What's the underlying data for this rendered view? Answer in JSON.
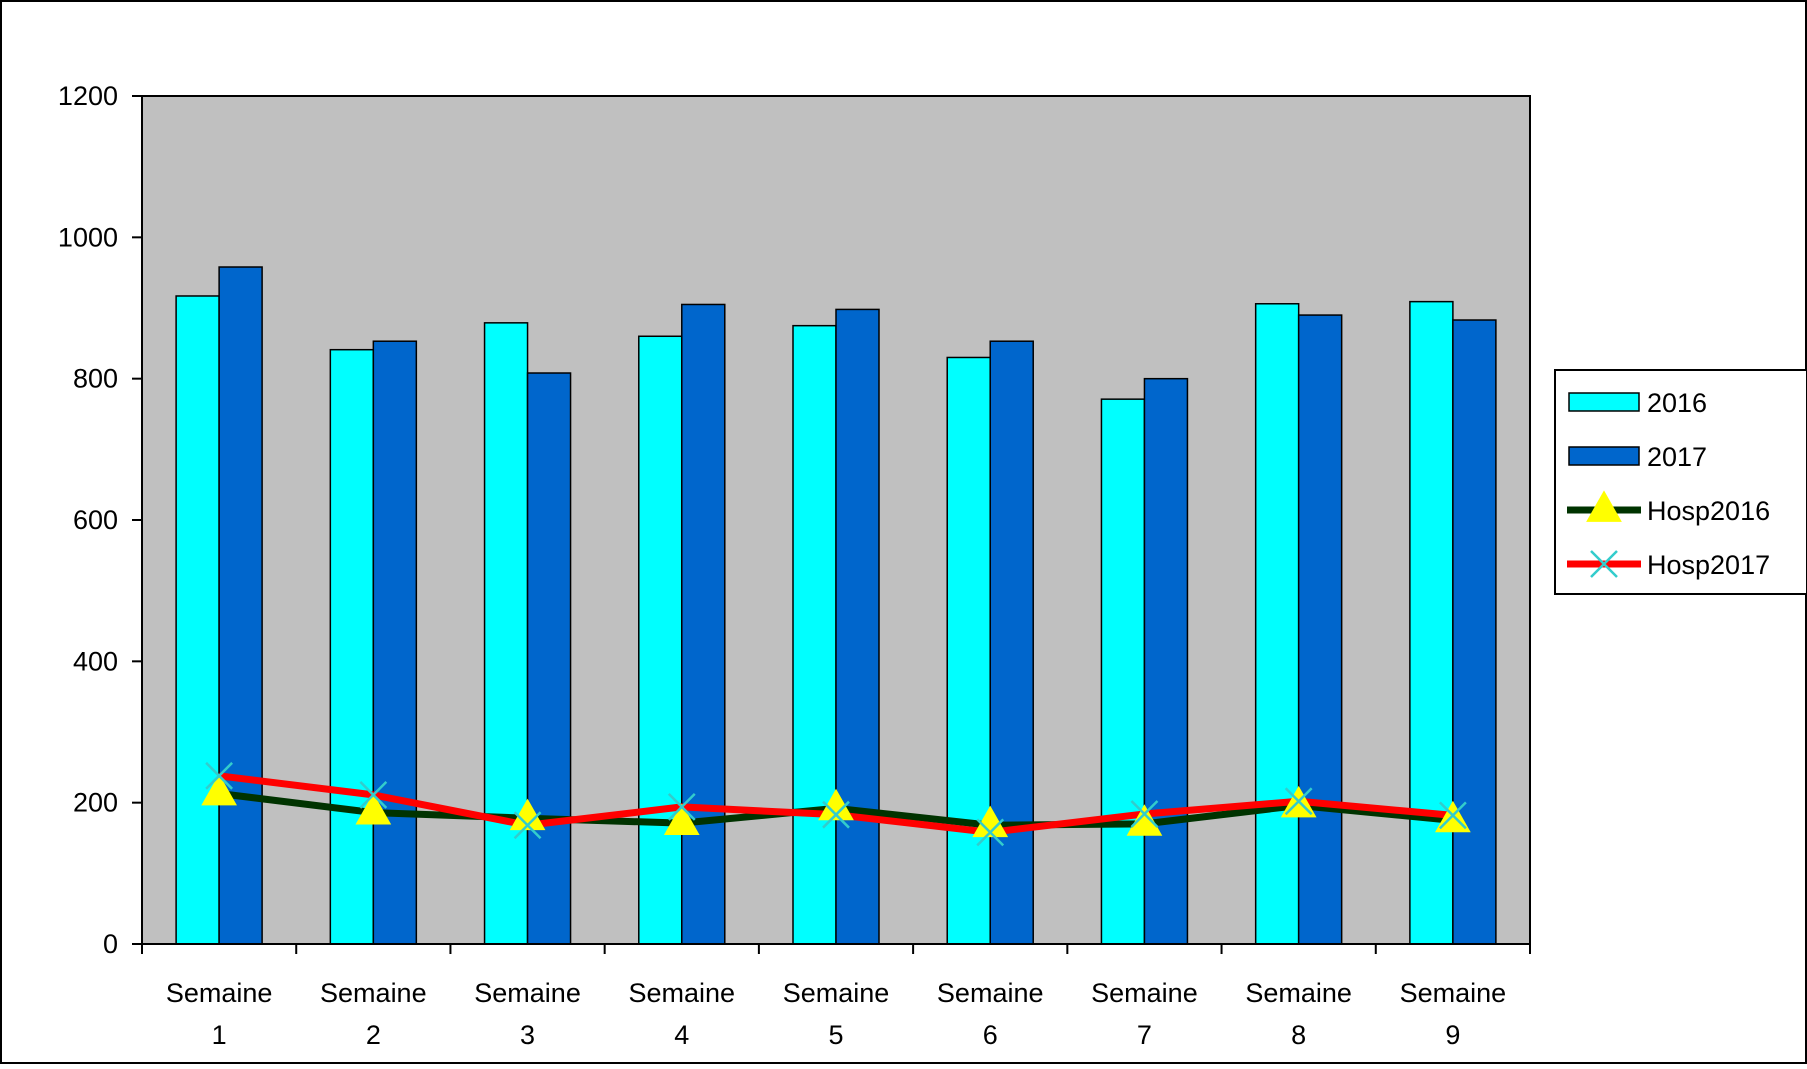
{
  "chart_data": {
    "type": "bar",
    "categories": [
      [
        "Semaine",
        "1"
      ],
      [
        "Semaine",
        "2"
      ],
      [
        "Semaine",
        "3"
      ],
      [
        "Semaine",
        "4"
      ],
      [
        "Semaine",
        "5"
      ],
      [
        "Semaine",
        "6"
      ],
      [
        "Semaine",
        "7"
      ],
      [
        "Semaine",
        "8"
      ],
      [
        "Semaine",
        "9"
      ]
    ],
    "series": [
      {
        "name": "2016",
        "kind": "bar",
        "color": "#00ffff",
        "values": [
          917,
          841,
          879,
          860,
          875,
          830,
          771,
          906,
          909
        ]
      },
      {
        "name": "2017",
        "kind": "bar",
        "color": "#0066cc",
        "values": [
          958,
          853,
          808,
          905,
          898,
          853,
          800,
          890,
          883
        ]
      },
      {
        "name": "Hosp2016",
        "kind": "line",
        "color": "#003300",
        "marker": "triangle",
        "marker_color": "#ffff00",
        "values": [
          213,
          186,
          178,
          171,
          192,
          168,
          170,
          196,
          175
        ]
      },
      {
        "name": "Hosp2017",
        "kind": "line",
        "color": "#ff0000",
        "marker": "x",
        "marker_color": "#33cccc",
        "values": [
          238,
          211,
          168,
          194,
          183,
          158,
          184,
          202,
          182
        ]
      }
    ],
    "ylim": [
      0,
      1200
    ],
    "yticks": [
      0,
      200,
      400,
      600,
      800,
      1000,
      1200
    ],
    "plot_background": "#c0c0c0",
    "grid": false,
    "legend_position": "right",
    "title": "",
    "xlabel": "",
    "ylabel": ""
  }
}
